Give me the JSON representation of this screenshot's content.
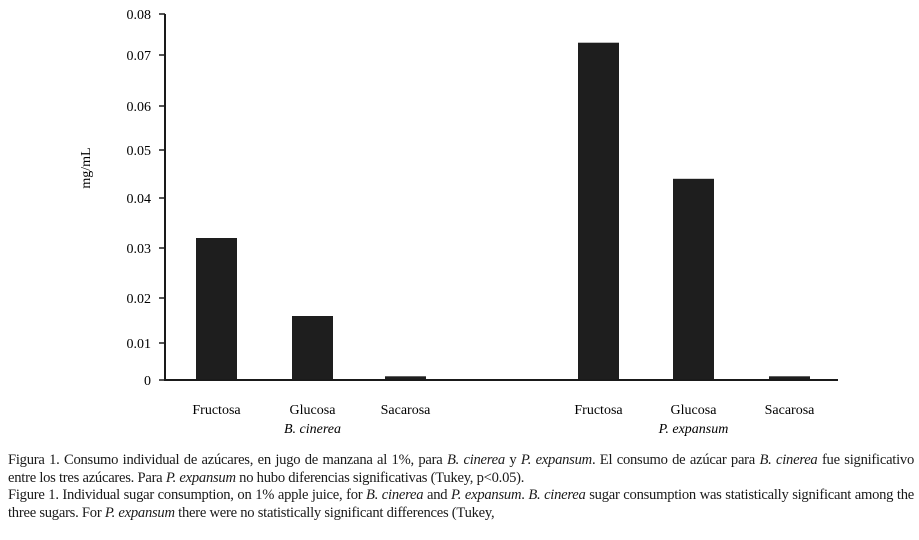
{
  "chart_data": {
    "type": "bar",
    "ylabel": "mg/mL",
    "ylim": [
      0,
      0.08
    ],
    "yticks": [
      "0",
      "0.01",
      "0.02",
      "0.03",
      "0.04",
      "0.05",
      "0.06",
      "0.07",
      "0.08"
    ],
    "groups": [
      {
        "name": "B. cinerea",
        "categories": [
          "Fructosa",
          "Glucosa",
          "Sacarosa"
        ],
        "values": [
          0.032,
          0.016,
          0.001
        ]
      },
      {
        "name": "P. expansum",
        "categories": [
          "Fructosa",
          "Glucosa",
          "Sacarosa"
        ],
        "values": [
          0.073,
          0.044,
          0.001
        ]
      }
    ],
    "bar_color": "#1e1e1e",
    "grid": false,
    "legend": "none"
  },
  "caption": {
    "es": [
      {
        "t": "Figura 1. Consumo individual de azúcares, en jugo de manzana al 1%, para "
      },
      {
        "t": "B. cinerea",
        "i": true
      },
      {
        "t": " y "
      },
      {
        "t": "P. expansum",
        "i": true
      },
      {
        "t": ". El consumo de azúcar para "
      },
      {
        "t": "B. cinerea",
        "i": true
      },
      {
        "t": " fue significativo entre los tres azúcares. Para "
      },
      {
        "t": "P. expansum",
        "i": true
      },
      {
        "t": " no hubo diferencias significativas (Tukey, p<0.05)."
      }
    ],
    "en": [
      {
        "t": "Figure 1. Individual sugar consumption, on 1% apple juice, for "
      },
      {
        "t": "B. cinerea",
        "i": true
      },
      {
        "t": " and "
      },
      {
        "t": "P. expansum",
        "i": true
      },
      {
        "t": ". "
      },
      {
        "t": "B. cinerea",
        "i": true
      },
      {
        "t": " sugar consumption was statistically significant among the three sugars. For "
      },
      {
        "t": "P. expansum",
        "i": true
      },
      {
        "t": " there were no statistically significant differences (Tukey,"
      }
    ]
  }
}
